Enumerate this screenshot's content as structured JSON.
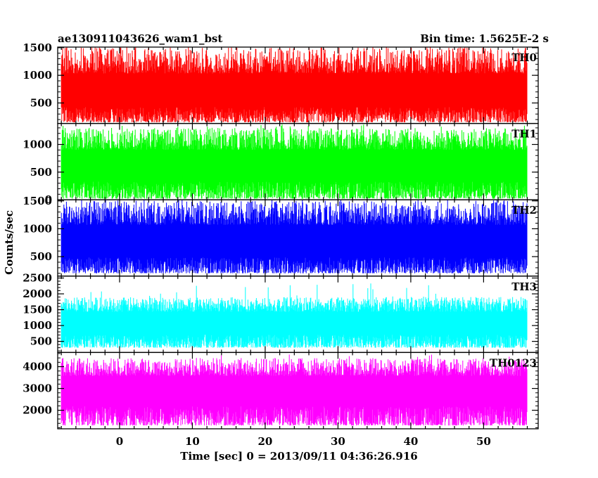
{
  "chart_data": {
    "type": "line",
    "title_left": "ae130911043626_wam1_bst",
    "title_right": "Bin time: 1.5625E-2 s",
    "xlabel": "Time [sec] 0 = 2013/09/11 04:36:26.916",
    "ylabel": "Counts/sec",
    "xlim": [
      -8.5,
      57.5
    ],
    "x_range_data": [
      -8.0,
      56.0
    ],
    "bin_time": 0.015625,
    "x_ticks": [
      0,
      10,
      20,
      30,
      40,
      50
    ],
    "panels": [
      {
        "name": "TH0",
        "color": "#ff0000",
        "ylim": [
          130,
          1510
        ],
        "yticks": [
          500,
          1000,
          1500
        ],
        "baseline": 650,
        "noise_low": 150,
        "noise_high": 1500,
        "spike_max": 1510
      },
      {
        "name": "TH1",
        "color": "#00ff00",
        "ylim": [
          0,
          1380
        ],
        "yticks": [
          0,
          500,
          1000
        ],
        "baseline": 580,
        "noise_low": 20,
        "noise_high": 1300,
        "spike_max": 1380
      },
      {
        "name": "TH2",
        "color": "#0000ff",
        "ylim": [
          150,
          1520
        ],
        "yticks": [
          500,
          1000,
          1500
        ],
        "baseline": 720,
        "noise_low": 200,
        "noise_high": 1500,
        "spike_max": 1520
      },
      {
        "name": "TH3",
        "color": "#00ffff",
        "ylim": [
          150,
          2560
        ],
        "yticks": [
          500,
          1000,
          1500,
          2000,
          2500
        ],
        "baseline": 1050,
        "noise_low": 300,
        "noise_high": 1900,
        "spike_max": 2400
      },
      {
        "name": "TH0123",
        "color": "#ff00ff",
        "ylim": [
          1150,
          4650
        ],
        "yticks": [
          2000,
          3000,
          4000
        ],
        "baseline": 2900,
        "noise_low": 1300,
        "noise_high": 4400,
        "spike_max": 4600
      }
    ]
  }
}
